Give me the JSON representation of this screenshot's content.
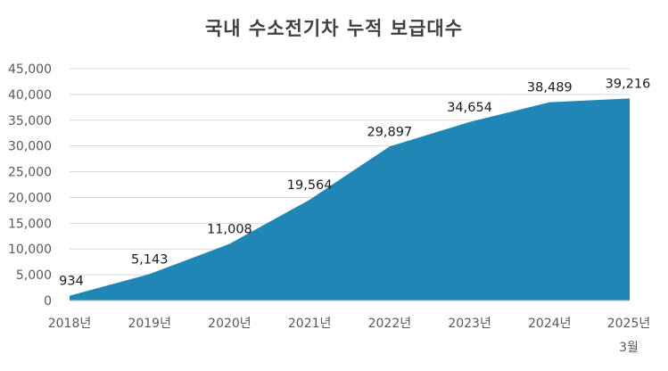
{
  "chart_data": {
    "type": "area",
    "title": "국내 수소전기차 누적 보급대수",
    "categories": [
      "2018년",
      "2019년",
      "2020년",
      "2021년",
      "2022년",
      "2023년",
      "2024년",
      "2025년"
    ],
    "category_sublabels": [
      "",
      "",
      "",
      "",
      "",
      "",
      "",
      "3월"
    ],
    "values": [
      934,
      5143,
      11008,
      19564,
      29897,
      34654,
      38489,
      39216
    ],
    "data_labels": [
      "934",
      "5,143",
      "11,008",
      "19,564",
      "29,897",
      "34,654",
      "38,489",
      "39,216"
    ],
    "y_ticks": [
      "0",
      "5,000",
      "10,000",
      "15,000",
      "20,000",
      "25,000",
      "30,000",
      "35,000",
      "40,000",
      "45,000"
    ],
    "ylim": [
      0,
      45000
    ],
    "grid": true,
    "legend": "none",
    "fill_color": "#1f86b5"
  }
}
